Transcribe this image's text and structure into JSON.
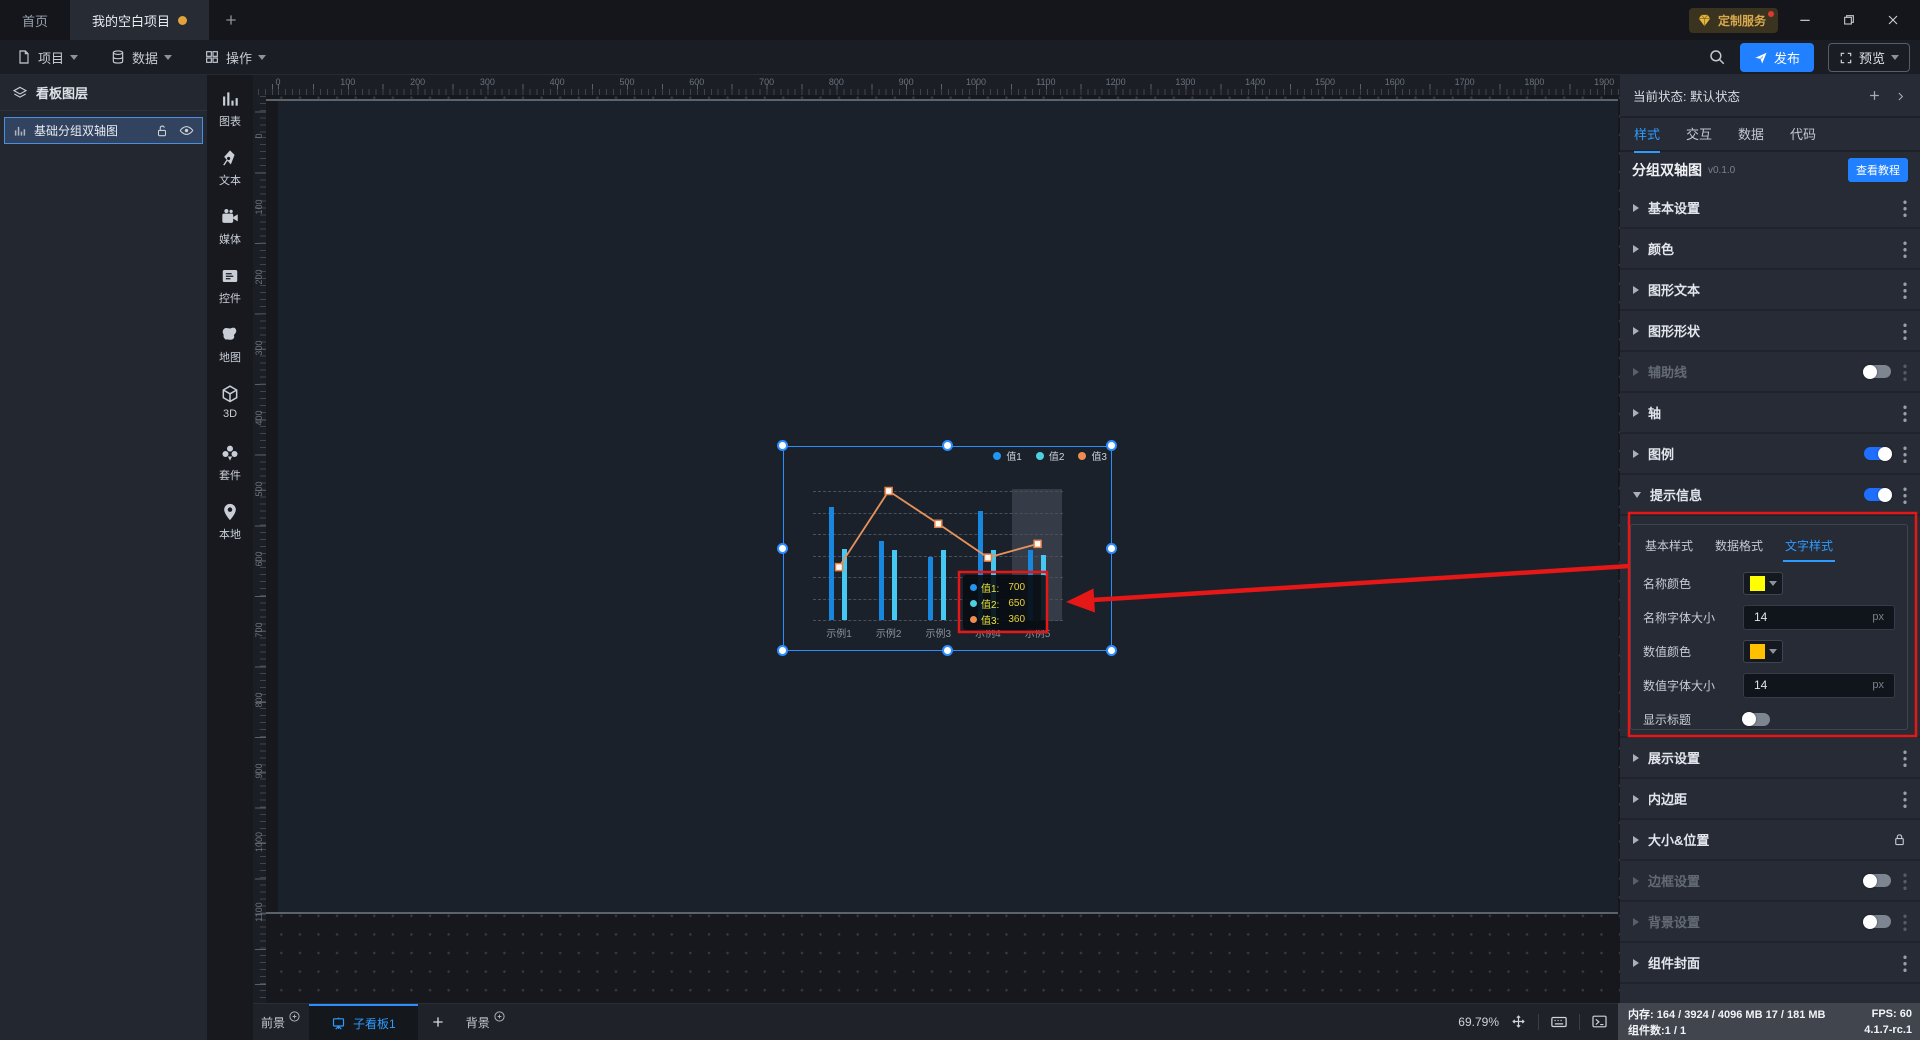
{
  "window_tabs": {
    "home": "首页",
    "project": "我的空白项目"
  },
  "menu": {
    "project": "项目",
    "data": "数据",
    "ops": "操作"
  },
  "top_right": {
    "custom_service": "定制服务",
    "publish": "发布",
    "preview": "预览"
  },
  "left_panel": {
    "title": "看板图层",
    "layer": "基础分组双轴图"
  },
  "toolbox": {
    "items": [
      {
        "icon": "chart",
        "label": "图表"
      },
      {
        "icon": "text",
        "label": "文本"
      },
      {
        "icon": "media",
        "label": "媒体"
      },
      {
        "icon": "widget",
        "label": "控件"
      },
      {
        "icon": "map",
        "label": "地图"
      },
      {
        "icon": "cube",
        "label": "3D"
      },
      {
        "icon": "kit",
        "label": "套件"
      },
      {
        "icon": "local",
        "label": "本地"
      }
    ]
  },
  "ruler": {
    "h_labels": [
      0,
      100,
      200,
      300,
      400,
      500,
      600,
      700,
      800,
      900,
      1000,
      1100,
      1200,
      1300,
      1400,
      1500,
      1600,
      1700,
      1800,
      1900
    ],
    "v_labels": [
      0,
      100,
      200,
      300,
      400,
      500,
      600,
      700,
      800,
      900,
      1000,
      1100
    ]
  },
  "chart_data": {
    "type": "bar",
    "subtype": "grouped dual-axis bar + line",
    "title": "",
    "categories": [
      "示例1",
      "示例2",
      "示例3",
      "示例4",
      "示例5"
    ],
    "series": [
      {
        "name": "值1",
        "type": "bar",
        "color": "#1787e0",
        "values": [
          1130,
          790,
          630,
          1090,
          700
        ]
      },
      {
        "name": "值2",
        "type": "bar",
        "color": "#45c8f1",
        "values": [
          710,
          700,
          700,
          700,
          650
        ]
      },
      {
        "name": "值3",
        "type": "line",
        "axis": "y2",
        "color": "#e89152",
        "values": [
          250,
          610,
          455,
          295,
          360
        ]
      }
    ],
    "ylim": [
      0,
      1290
    ],
    "y2lim": [
      0,
      610
    ],
    "grid": "dashed horizontal",
    "legend_position": "top-right",
    "legend_colors": [
      "#2196f3",
      "#4dd0e1",
      "#ed8d4e"
    ],
    "highlighted_category": "示例5",
    "tooltip": {
      "rows": [
        {
          "name": "值1:",
          "value": "700",
          "color": "#2196f3"
        },
        {
          "name": "值2:",
          "value": "650",
          "color": "#4dd0e1"
        },
        {
          "name": "值3:",
          "value": "360",
          "color": "#ed8d4e"
        }
      ],
      "name_color": "#e9e73a",
      "value_color": "#ecd235"
    }
  },
  "right_panel": {
    "state_label": "当前状态: 默认状态",
    "tabs": [
      {
        "label": "样式",
        "active": true
      },
      {
        "label": "交互",
        "active": false
      },
      {
        "label": "数据",
        "active": false
      },
      {
        "label": "代码",
        "active": false
      }
    ],
    "component_title": "分组双轴图",
    "component_version": "v0.1.0",
    "tutorial_button": "查看教程",
    "sections": [
      {
        "label": "基本设置",
        "menu": true
      },
      {
        "label": "颜色",
        "menu": true
      },
      {
        "label": "图形文本",
        "menu": true
      },
      {
        "label": "图形形状",
        "menu": true
      },
      {
        "label": "辅助线",
        "disabled": true,
        "toggle": "off",
        "menu": true
      },
      {
        "label": "轴",
        "menu": true
      },
      {
        "label": "图例",
        "toggle": "on",
        "menu": true
      },
      {
        "label": "提示信息",
        "toggle": "on",
        "menu": true,
        "expanded": true
      },
      {
        "label": "展示设置",
        "menu": true
      },
      {
        "label": "内边距",
        "menu": true
      },
      {
        "label": "大小&位置",
        "lock": true
      },
      {
        "label": "边框设置",
        "disabled": true,
        "toggle": "off",
        "menu": true
      },
      {
        "label": "背景设置",
        "disabled": true,
        "toggle": "off",
        "menu": true
      },
      {
        "label": "组件封面",
        "menu": true
      }
    ],
    "tooltip_editor": {
      "tabs": [
        {
          "label": "基本样式",
          "active": false
        },
        {
          "label": "数据格式",
          "active": false
        },
        {
          "label": "文字样式",
          "active": true
        }
      ],
      "fields": [
        {
          "label": "名称颜色",
          "type": "color",
          "color": "#ffff00"
        },
        {
          "label": "名称字体大小",
          "type": "input",
          "value": "14",
          "suffix": "px"
        },
        {
          "label": "数值颜色",
          "type": "color",
          "color": "#ffc000"
        },
        {
          "label": "数值字体大小",
          "type": "input",
          "value": "14",
          "suffix": "px"
        },
        {
          "label": "显示标题",
          "type": "toggle",
          "state": "off"
        }
      ]
    }
  },
  "bottom_bar": {
    "foreground": "前景",
    "board_tab": "子看板1",
    "background": "背景",
    "zoom": "69.79%"
  },
  "status_bar": {
    "memory_label": "内存:",
    "memory_value": "164 / 3924 / 4096 MB  17 / 181 MB",
    "fps_label": "FPS:",
    "fps_value": "60",
    "components_label": "组件数:",
    "components_value": "1 / 1",
    "version": "4.1.7-rc.1"
  },
  "colors": {
    "accent": "#2483ff",
    "selection": "#2b8dff",
    "annotation": "#e51717",
    "dashboard_bg": "#1b212b"
  }
}
